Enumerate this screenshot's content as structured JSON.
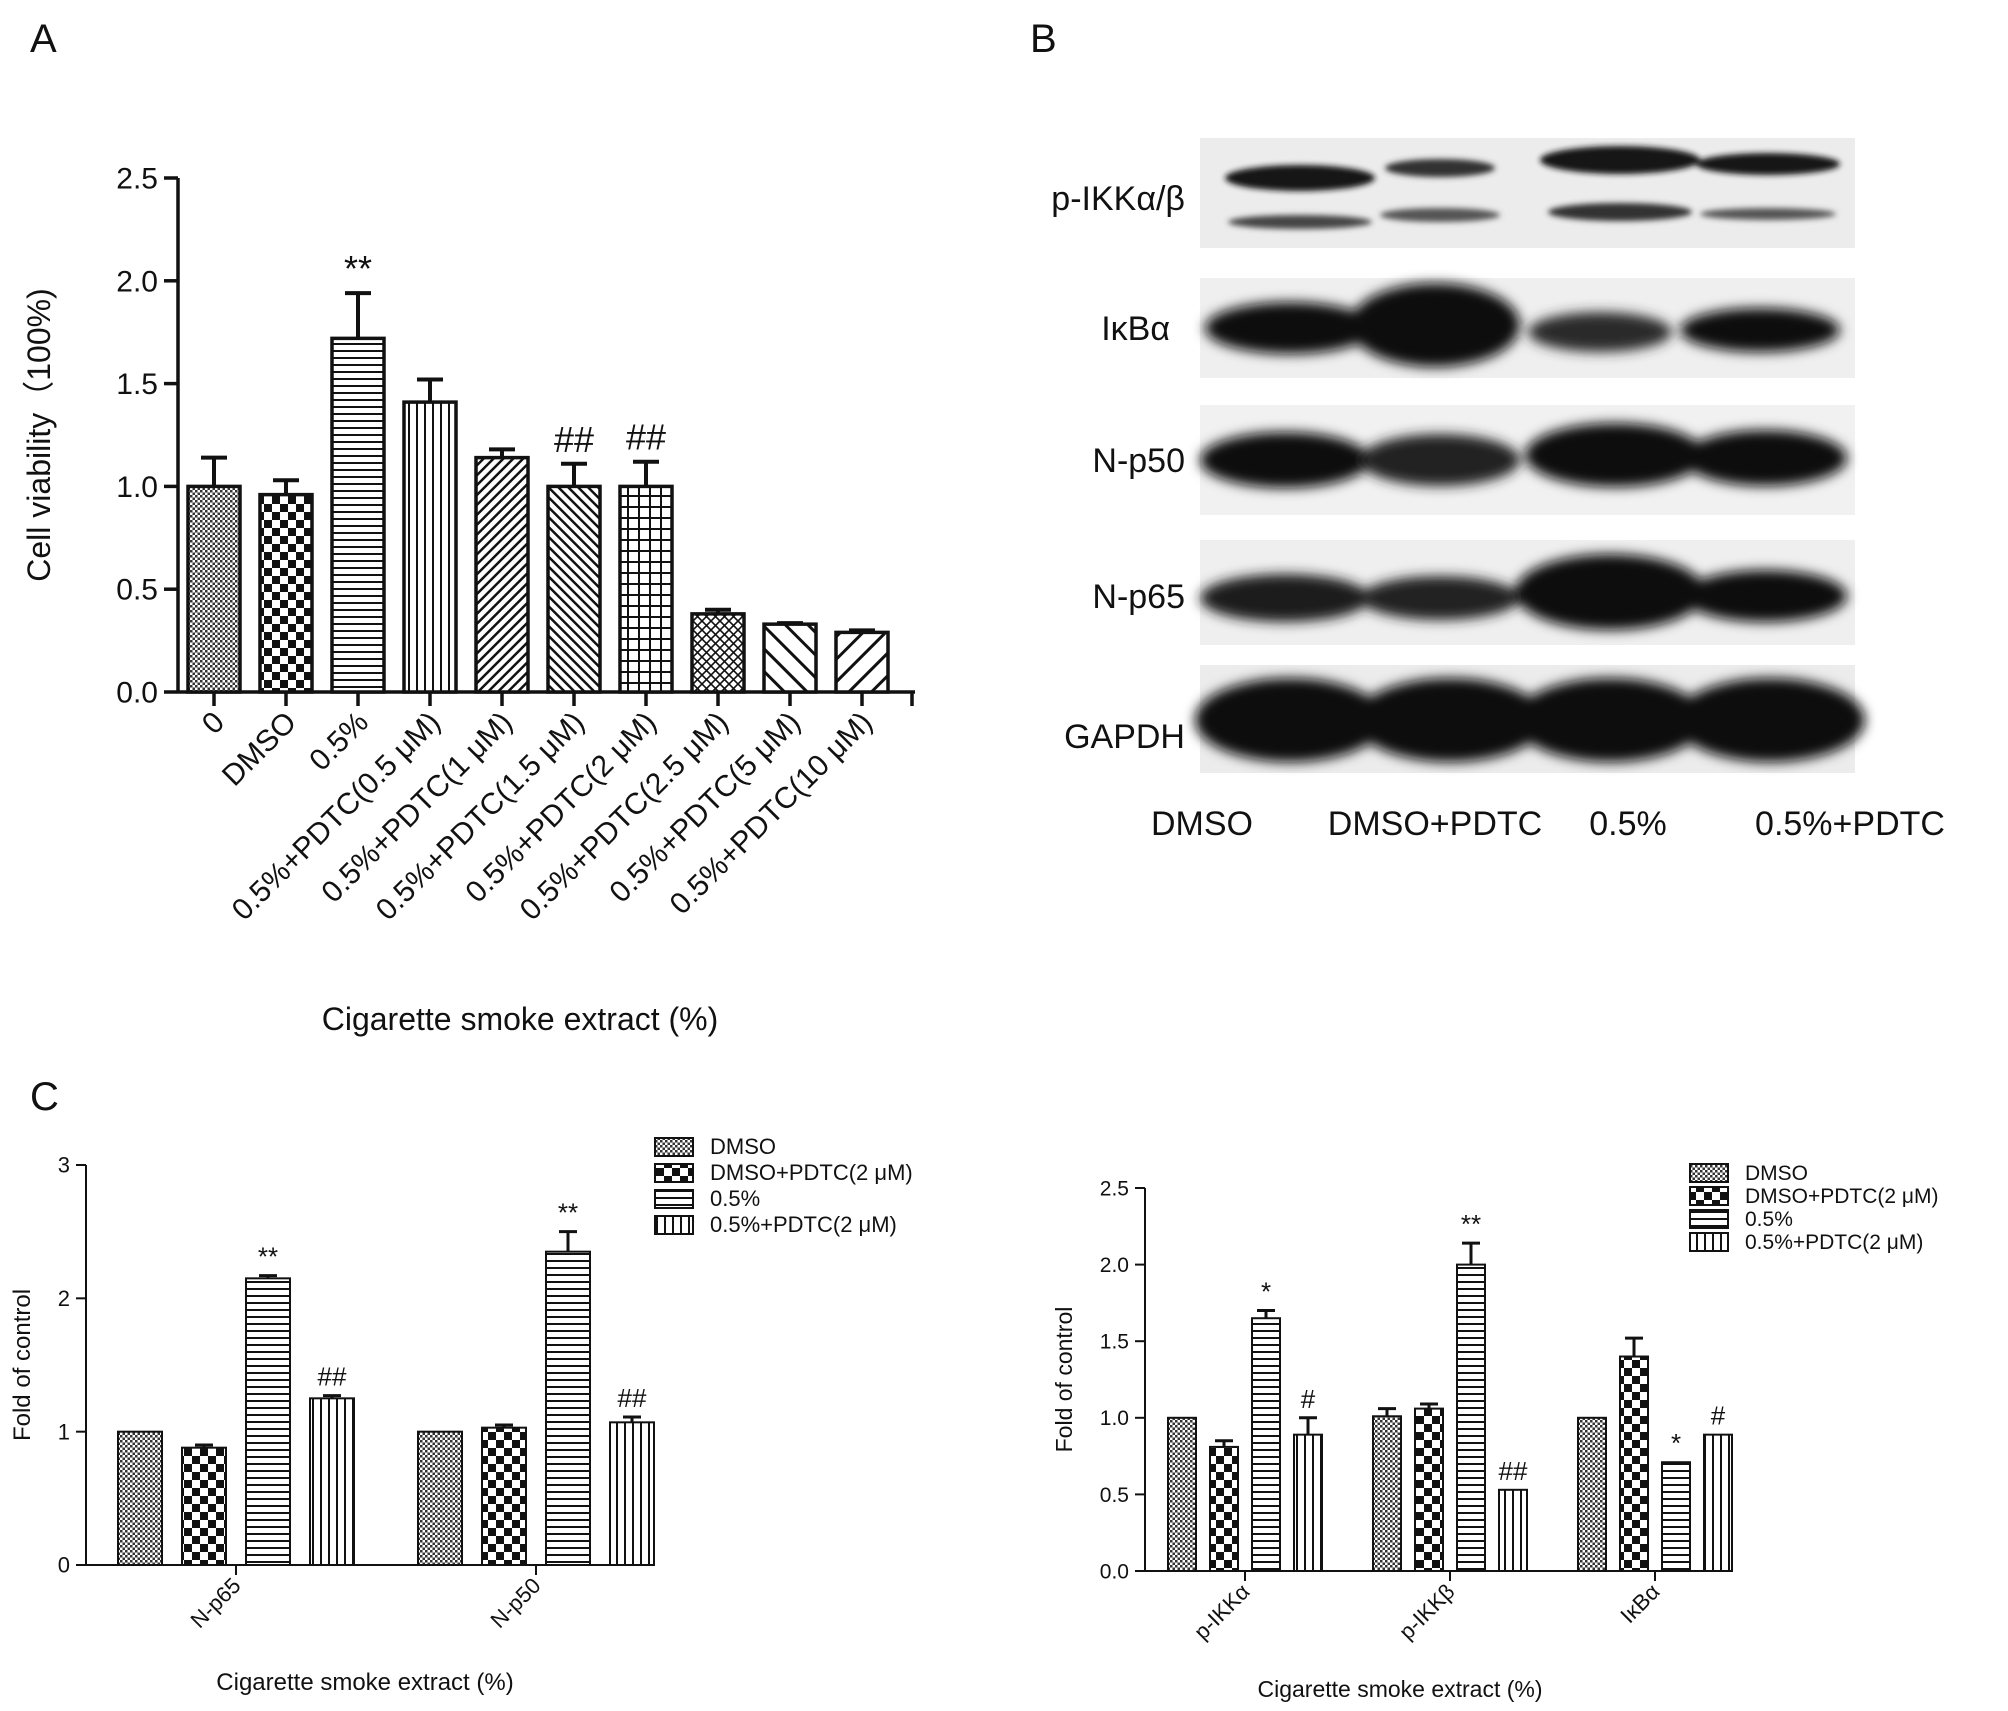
{
  "panels": {
    "a": "A",
    "b": "B",
    "c": "C"
  },
  "chart_data": [
    {
      "id": "A",
      "type": "bar",
      "ylabel": "Cell viability（100%)",
      "xlabel": "Cigarette smoke extract (%)",
      "ylim": [
        0,
        2.5
      ],
      "yticks": [
        "0.0",
        "0.5",
        "1.0",
        "1.5",
        "2.0",
        "2.5"
      ],
      "categories": [
        "0",
        "DMSO",
        "0.5%",
        "0.5%+PDTC(0.5 μM)",
        "0.5%+PDTC(1 μM)",
        "0.5%+PDTC(1.5 μM)",
        "0.5%+PDTC(2 μM)",
        "0.5%+PDTC(2.5 μM)",
        "0.5%+PDTC(5 μM)",
        "0.5%+PDTC(10 μM)"
      ],
      "values": [
        1.0,
        0.96,
        1.72,
        1.41,
        1.14,
        1.0,
        1.0,
        0.38,
        0.33,
        0.29
      ],
      "errors": [
        0.14,
        0.07,
        0.22,
        0.11,
        0.04,
        0.11,
        0.12,
        0.02,
        0.005,
        0.01
      ],
      "annotations": [
        "",
        "",
        "**",
        "",
        "",
        "##",
        "##",
        "",
        "",
        ""
      ],
      "patterns": [
        "dots",
        "checker",
        "hlines",
        "vlines",
        "diag",
        "backdiag",
        "grid",
        "crosshatch",
        "wbackdiag",
        "wdiag"
      ]
    },
    {
      "id": "C-left",
      "type": "bar",
      "ylabel": "Fold of control",
      "xlabel": "Cigarette smoke extract (%)",
      "ylim": [
        0,
        3
      ],
      "yticks": [
        "0",
        "1",
        "2",
        "3"
      ],
      "categories": [
        "N-p65",
        "N-p50"
      ],
      "series": [
        {
          "name": "DMSO",
          "pattern": "dots",
          "values": [
            1.0,
            1.0
          ],
          "errors": [
            0.0,
            0.0
          ],
          "annotations": [
            "",
            ""
          ]
        },
        {
          "name": "DMSO+PDTC(2 μM)",
          "pattern": "checker",
          "values": [
            0.88,
            1.03
          ],
          "errors": [
            0.02,
            0.02
          ],
          "annotations": [
            "",
            ""
          ]
        },
        {
          "name": "0.5%",
          "pattern": "hlines",
          "values": [
            2.15,
            2.35
          ],
          "errors": [
            0.02,
            0.15
          ],
          "annotations": [
            "**",
            "**"
          ]
        },
        {
          "name": "0.5%+PDTC(2 μM)",
          "pattern": "vlines",
          "values": [
            1.25,
            1.07
          ],
          "errors": [
            0.02,
            0.04
          ],
          "annotations": [
            "##",
            "##"
          ]
        }
      ]
    },
    {
      "id": "C-right",
      "type": "bar",
      "ylabel": "Fold of control",
      "xlabel": "Cigarette smoke extract (%)",
      "ylim": [
        0,
        2.5
      ],
      "yticks": [
        "0.0",
        "0.5",
        "1.0",
        "1.5",
        "2.0",
        "2.5"
      ],
      "categories": [
        "p-IKKα",
        "p-IKKβ",
        "IκBα"
      ],
      "series": [
        {
          "name": "DMSO",
          "pattern": "dots",
          "values": [
            1.0,
            1.01,
            1.0
          ],
          "errors": [
            0.0,
            0.05,
            0.0
          ],
          "annotations": [
            "",
            "",
            ""
          ]
        },
        {
          "name": "DMSO+PDTC(2 μM)",
          "pattern": "checker",
          "values": [
            0.81,
            1.06,
            1.4
          ],
          "errors": [
            0.04,
            0.03,
            0.12
          ],
          "annotations": [
            "",
            "",
            ""
          ]
        },
        {
          "name": "0.5%",
          "pattern": "hlines",
          "values": [
            1.65,
            2.0,
            0.71
          ],
          "errors": [
            0.05,
            0.14,
            0.0
          ],
          "annotations": [
            "*",
            "**",
            "*"
          ]
        },
        {
          "name": "0.5%+PDTC(2 μM)",
          "pattern": "vlines",
          "values": [
            0.89,
            0.53,
            0.89
          ],
          "errors": [
            0.11,
            0.0,
            0.0
          ],
          "annotations": [
            "#",
            "##",
            "#"
          ]
        }
      ]
    }
  ],
  "western_blot": {
    "rows": [
      "p-IKKα/β",
      "IκBα",
      "N-p50",
      "N-p65",
      "GAPDH"
    ],
    "lanes": [
      "DMSO",
      "DMSO+PDTC",
      "0.5%",
      "0.5%+PDTC"
    ]
  }
}
